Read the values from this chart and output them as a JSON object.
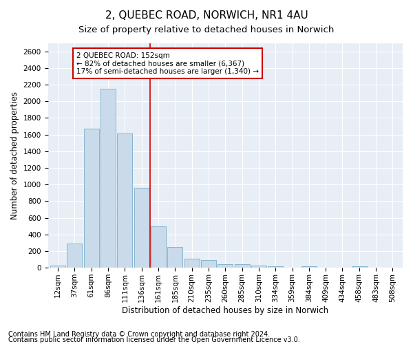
{
  "title": "2, QUEBEC ROAD, NORWICH, NR1 4AU",
  "subtitle": "Size of property relative to detached houses in Norwich",
  "xlabel": "Distribution of detached houses by size in Norwich",
  "ylabel": "Number of detached properties",
  "categories": [
    "12sqm",
    "37sqm",
    "61sqm",
    "86sqm",
    "111sqm",
    "136sqm",
    "161sqm",
    "185sqm",
    "210sqm",
    "235sqm",
    "260sqm",
    "285sqm",
    "310sqm",
    "334sqm",
    "359sqm",
    "384sqm",
    "409sqm",
    "434sqm",
    "458sqm",
    "483sqm",
    "508sqm"
  ],
  "values": [
    25,
    290,
    1670,
    2150,
    1610,
    960,
    500,
    250,
    110,
    90,
    40,
    40,
    25,
    15,
    5,
    15,
    5,
    3,
    15,
    2,
    2
  ],
  "bar_color": "#c9daea",
  "bar_edge_color": "#7aaec8",
  "vline_x_index": 5.5,
  "vline_color": "#cc0000",
  "annotation_text": "2 QUEBEC ROAD: 152sqm\n← 82% of detached houses are smaller (6,367)\n17% of semi-detached houses are larger (1,340) →",
  "annotation_box_color": "#ffffff",
  "annotation_box_edge": "#cc0000",
  "ylim": [
    0,
    2700
  ],
  "yticks": [
    0,
    200,
    400,
    600,
    800,
    1000,
    1200,
    1400,
    1600,
    1800,
    2000,
    2200,
    2400,
    2600
  ],
  "footnote1": "Contains HM Land Registry data © Crown copyright and database right 2024.",
  "footnote2": "Contains public sector information licensed under the Open Government Licence v3.0.",
  "plot_bg_color": "#e8eef5",
  "title_fontsize": 11,
  "subtitle_fontsize": 9.5,
  "label_fontsize": 8.5,
  "tick_fontsize": 7.5,
  "footnote_fontsize": 7
}
